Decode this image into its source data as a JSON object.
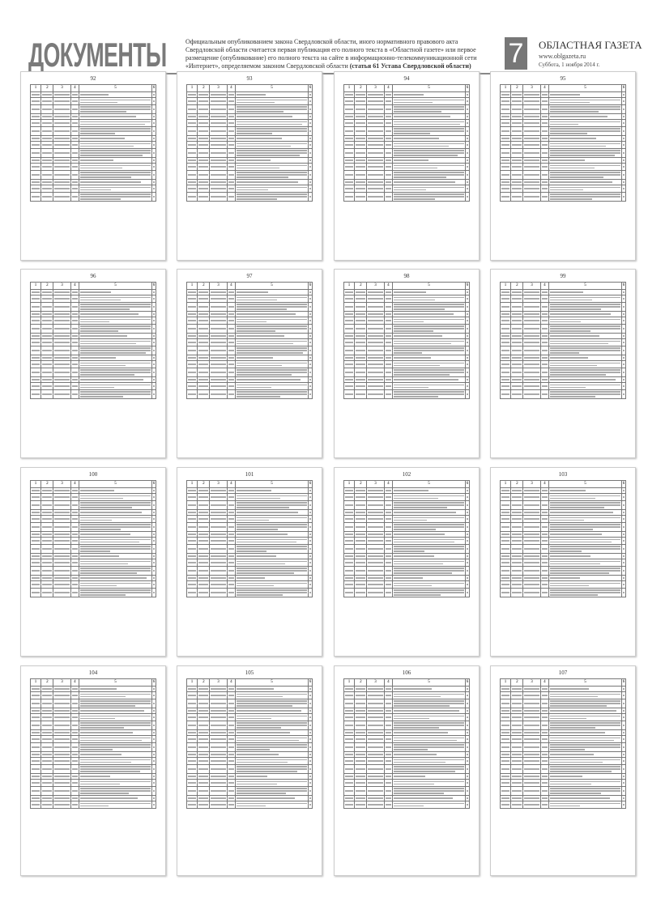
{
  "header": {
    "section_title": "ДОКУМЕНТЫ",
    "intro_text": "Официальным опубликованием закона Свердловской области, иного нормативного правового акта Свердловской области считается первая публикация его полного текста в «Областной газете» или первое размещение (опубликование) его полного текста на сайте в информационно-телекоммуникационной сети «Интернет», определяемом законом Свердловской области",
    "intro_bold": "(статья 61 Устава Свердловской области)",
    "page_number": "7",
    "newspaper": "ОБЛАСТНАЯ ГАЗЕТА",
    "website": "www.oblgazeta.ru",
    "date": "Суббота, 1 ноября 2014 г."
  },
  "table_columns": [
    "1",
    "2",
    "3",
    "4",
    "5",
    "6"
  ],
  "pages": [
    "92",
    "93",
    "94",
    "95",
    "96",
    "97",
    "98",
    "99",
    "100",
    "101",
    "102",
    "103",
    "104",
    "105",
    "106",
    "107"
  ]
}
